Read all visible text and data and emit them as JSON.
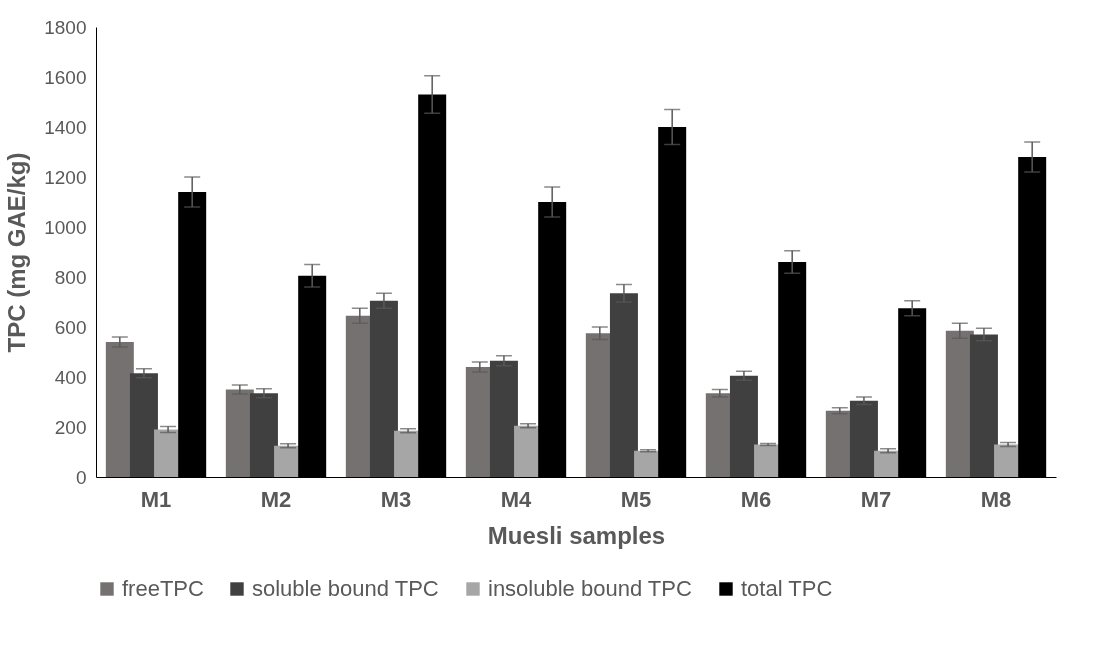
{
  "chart_data": {
    "type": "bar",
    "xlabel": "Muesli samples",
    "ylabel": "TPC (mg GAE/kg)",
    "categories": [
      "M1",
      "M2",
      "M3",
      "M4",
      "M5",
      "M6",
      "M7",
      "M8"
    ],
    "series": [
      {
        "name": "freeTPC",
        "color": "#767171",
        "values": [
          540,
          350,
          645,
          440,
          575,
          335,
          265,
          585
        ],
        "errors": [
          20,
          18,
          30,
          20,
          25,
          15,
          12,
          30
        ]
      },
      {
        "name": "soluble bound TPC",
        "color": "#404040",
        "values": [
          415,
          335,
          705,
          465,
          735,
          405,
          305,
          570
        ],
        "errors": [
          18,
          18,
          30,
          20,
          35,
          18,
          15,
          25
        ]
      },
      {
        "name": "insoluble bound TPC",
        "color": "#a6a6a6",
        "values": [
          190,
          125,
          185,
          205,
          105,
          130,
          105,
          130
        ],
        "errors": [
          12,
          8,
          8,
          8,
          4,
          4,
          8,
          8
        ]
      },
      {
        "name": "total TPC",
        "color": "#000000",
        "values": [
          1140,
          805,
          1530,
          1100,
          1400,
          860,
          675,
          1280
        ],
        "errors": [
          60,
          45,
          75,
          60,
          70,
          45,
          30,
          60
        ]
      }
    ],
    "ylim": [
      0,
      1800
    ],
    "yticks": [
      0,
      200,
      400,
      600,
      800,
      1000,
      1200,
      1400,
      1600,
      1800
    ],
    "grid": false,
    "legend": "bottom"
  }
}
